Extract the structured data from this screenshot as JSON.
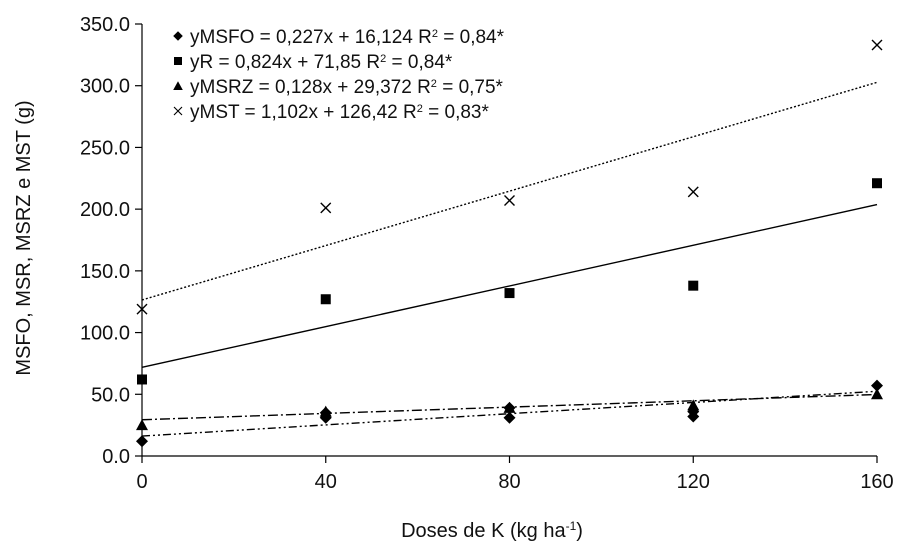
{
  "chart_data": {
    "type": "scatter",
    "xlabel": "Doses de K (kg ha",
    "xlabel_sup": "-1",
    "xlabel_tail": ")",
    "ylabel": "MSFO, MSR, MSRZ e MST (g)",
    "xlim": [
      0,
      160
    ],
    "ylim": [
      0,
      350
    ],
    "x_ticks": [
      "0",
      "40",
      "80",
      "120",
      "160"
    ],
    "y_ticks": [
      "0.0",
      "50.0",
      "100.0",
      "150.0",
      "200.0",
      "250.0",
      "300.0",
      "350.0"
    ],
    "grid": false,
    "legend_position": "top-left",
    "series": [
      {
        "marker": "diamond",
        "legend_main": "yMSFO = 0,227x + 16,124 R",
        "legend_sup": "2",
        "legend_tail": " = 0,84*",
        "trend": {
          "slope": 0.227,
          "intercept": 16.124,
          "style": "dash-dot-dot"
        },
        "points": [
          {
            "x": 0,
            "y": 12
          },
          {
            "x": 40,
            "y": 31
          },
          {
            "x": 40,
            "y": 35
          },
          {
            "x": 80,
            "y": 31
          },
          {
            "x": 80,
            "y": 39
          },
          {
            "x": 120,
            "y": 32
          },
          {
            "x": 120,
            "y": 36
          },
          {
            "x": 160,
            "y": 57
          }
        ]
      },
      {
        "marker": "square",
        "legend_main": "yR = 0,824x + 71,85 R",
        "legend_sup": "2",
        "legend_tail": " = 0,84*",
        "trend": {
          "slope": 0.824,
          "intercept": 71.85,
          "style": "solid"
        },
        "points": [
          {
            "x": 0,
            "y": 62
          },
          {
            "x": 40,
            "y": 127
          },
          {
            "x": 80,
            "y": 132
          },
          {
            "x": 120,
            "y": 138
          },
          {
            "x": 160,
            "y": 221
          }
        ]
      },
      {
        "marker": "triangle",
        "legend_main": "yMSRZ = 0,128x + 29,372 R",
        "legend_sup": "2",
        "legend_tail": " = 0,75*",
        "trend": {
          "slope": 0.128,
          "intercept": 29.372,
          "style": "dash-dot"
        },
        "points": [
          {
            "x": 0,
            "y": 25
          },
          {
            "x": 40,
            "y": 36
          },
          {
            "x": 80,
            "y": 39
          },
          {
            "x": 120,
            "y": 41
          },
          {
            "x": 160,
            "y": 50
          }
        ]
      },
      {
        "marker": "x",
        "legend_main": "yMST = 1,102x + 126,42 R",
        "legend_sup": "2",
        "legend_tail": " = 0,83*",
        "trend": {
          "slope": 1.102,
          "intercept": 126.42,
          "style": "dotted"
        },
        "points": [
          {
            "x": 0,
            "y": 119
          },
          {
            "x": 40,
            "y": 201
          },
          {
            "x": 80,
            "y": 207
          },
          {
            "x": 120,
            "y": 214
          },
          {
            "x": 160,
            "y": 333
          }
        ]
      }
    ]
  }
}
